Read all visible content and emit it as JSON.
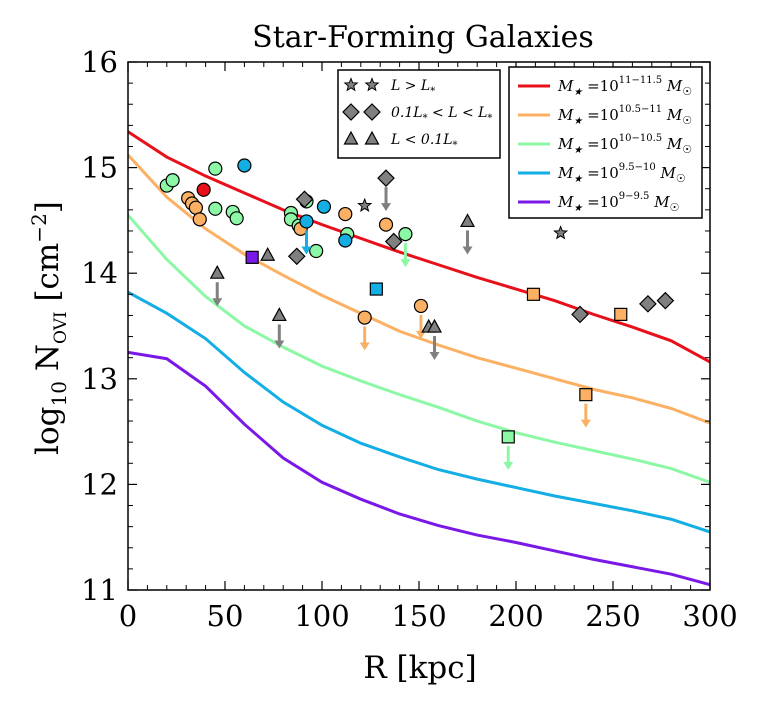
{
  "chart_data": {
    "type": "scatter",
    "title": "Star-Forming Galaxies",
    "xlabel": "R [kpc]",
    "ylabel": "log",
    "ylabel_parts": {
      "base": "log",
      "base_sub": "10",
      "N": "N",
      "N_sub": "OVI",
      "units": "[cm",
      "units_sup": "−2",
      "units_close": "]"
    },
    "xlim": [
      0,
      300
    ],
    "ylim": [
      11,
      16
    ],
    "xticks": [
      "0",
      "50",
      "100",
      "150",
      "200",
      "250",
      "300"
    ],
    "yticks": [
      "11",
      "12",
      "13",
      "14",
      "15",
      "16"
    ],
    "colors": {
      "red": "#e8101a",
      "orange": "#fbb063",
      "green": "#8cf8a6",
      "blue": "#12aee4",
      "purple": "#7a18e8",
      "gray": "#808080"
    },
    "model_lines": [
      {
        "name": "10^{11-11.5}",
        "label": "M",
        "color": "#e8101a",
        "x": [
          0,
          20,
          40,
          60,
          80,
          100,
          120,
          140,
          160,
          180,
          200,
          220,
          240,
          260,
          280,
          300
        ],
        "y": [
          15.34,
          15.1,
          14.92,
          14.76,
          14.6,
          14.46,
          14.33,
          14.2,
          14.08,
          13.96,
          13.85,
          13.74,
          13.61,
          13.49,
          13.36,
          13.16
        ]
      },
      {
        "name": "10^{10.5-11}",
        "label": "M",
        "color": "#fbb063",
        "x": [
          0,
          20,
          40,
          60,
          80,
          100,
          120,
          140,
          160,
          180,
          200,
          220,
          240,
          260,
          280,
          300
        ],
        "y": [
          15.12,
          14.72,
          14.42,
          14.18,
          13.98,
          13.79,
          13.62,
          13.45,
          13.32,
          13.2,
          13.1,
          13.0,
          12.9,
          12.82,
          12.72,
          12.58
        ]
      },
      {
        "name": "10^{10-10.5}",
        "label": "M",
        "color": "#8cf8a6",
        "x": [
          0,
          20,
          40,
          60,
          80,
          100,
          120,
          140,
          160,
          180,
          200,
          220,
          240,
          260,
          280,
          300
        ],
        "y": [
          14.55,
          14.13,
          13.78,
          13.5,
          13.3,
          13.12,
          12.98,
          12.85,
          12.73,
          12.6,
          12.49,
          12.4,
          12.32,
          12.24,
          12.15,
          12.02
        ]
      },
      {
        "name": "10^{9.5-10}",
        "label": "M",
        "color": "#12aee4",
        "x": [
          0,
          20,
          40,
          60,
          80,
          100,
          120,
          140,
          160,
          180,
          200,
          220,
          240,
          260,
          280,
          300
        ],
        "y": [
          13.82,
          13.62,
          13.38,
          13.06,
          12.78,
          12.56,
          12.39,
          12.26,
          12.14,
          12.05,
          11.97,
          11.89,
          11.82,
          11.75,
          11.67,
          11.55
        ]
      },
      {
        "name": "10^{9-9.5}",
        "label": "M",
        "color": "#7a18e8",
        "x": [
          0,
          20,
          40,
          60,
          80,
          100,
          120,
          140,
          160,
          180,
          200,
          220,
          240,
          260,
          280,
          300
        ],
        "y": [
          13.25,
          13.19,
          12.93,
          12.57,
          12.25,
          12.02,
          11.86,
          11.72,
          11.61,
          11.52,
          11.45,
          11.37,
          11.29,
          11.22,
          11.15,
          11.05
        ]
      }
    ],
    "symbol_legend": [
      {
        "marker": "star",
        "text": "L > L",
        "sub": "*"
      },
      {
        "marker": "diamond",
        "text": "0.1L",
        "sub": "*",
        "mid": " < L < L",
        "sub2": "*"
      },
      {
        "marker": "triangle",
        "text": "L < 0.1L",
        "sub": "*"
      }
    ],
    "mass_legend_prefix": "M",
    "mass_legend_star": "★",
    "mass_legend_suffix": "M",
    "mass_legend_sun": "☉",
    "mass_legend_exps": [
      "11−11.5",
      "10.5−11",
      "10−10.5",
      "9.5−10",
      "9−9.5"
    ],
    "points": [
      {
        "m": "circle",
        "c": "green",
        "x": 20,
        "y": 14.83
      },
      {
        "m": "circle",
        "c": "green",
        "x": 23,
        "y": 14.88
      },
      {
        "m": "circle",
        "c": "orange",
        "x": 31,
        "y": 14.71
      },
      {
        "m": "circle",
        "c": "orange",
        "x": 33,
        "y": 14.66
      },
      {
        "m": "circle",
        "c": "orange",
        "x": 35,
        "y": 14.62
      },
      {
        "m": "circle",
        "c": "orange",
        "x": 37,
        "y": 14.51
      },
      {
        "m": "circle",
        "c": "red",
        "x": 39,
        "y": 14.79
      },
      {
        "m": "circle",
        "c": "green",
        "x": 45,
        "y": 14.99
      },
      {
        "m": "circle",
        "c": "green",
        "x": 45,
        "y": 14.61
      },
      {
        "m": "circle",
        "c": "green",
        "x": 54,
        "y": 14.58
      },
      {
        "m": "circle",
        "c": "green",
        "x": 56,
        "y": 14.52
      },
      {
        "m": "circle",
        "c": "blue",
        "x": 60,
        "y": 15.02
      },
      {
        "m": "circle",
        "c": "green",
        "x": 84,
        "y": 14.57
      },
      {
        "m": "circle",
        "c": "green",
        "x": 84,
        "y": 14.51
      },
      {
        "m": "circle",
        "c": "green",
        "x": 88,
        "y": 14.45
      },
      {
        "m": "circle",
        "c": "orange",
        "x": 89,
        "y": 14.42
      },
      {
        "m": "circle",
        "c": "green",
        "x": 92,
        "y": 14.68
      },
      {
        "m": "circle",
        "c": "green",
        "x": 97,
        "y": 14.21
      },
      {
        "m": "circle",
        "c": "blue",
        "x": 101,
        "y": 14.63
      },
      {
        "m": "circle",
        "c": "orange",
        "x": 112,
        "y": 14.56
      },
      {
        "m": "circle",
        "c": "green",
        "x": 113,
        "y": 14.37
      },
      {
        "m": "circle",
        "c": "blue",
        "x": 112,
        "y": 14.31
      },
      {
        "m": "circle",
        "c": "orange",
        "x": 133,
        "y": 14.46
      },
      {
        "m": "circle",
        "c": "green",
        "x": 143,
        "y": 14.37,
        "lim": true
      },
      {
        "m": "circle",
        "c": "blue",
        "x": 92,
        "y": 14.49,
        "lim": true
      },
      {
        "m": "circle",
        "c": "orange",
        "x": 122,
        "y": 13.58,
        "lim": true
      },
      {
        "m": "circle",
        "c": "orange",
        "x": 151,
        "y": 13.69,
        "lim": true
      },
      {
        "m": "square",
        "c": "purple",
        "x": 64,
        "y": 14.15
      },
      {
        "m": "square",
        "c": "blue",
        "x": 128,
        "y": 13.85
      },
      {
        "m": "square",
        "c": "orange",
        "x": 209,
        "y": 13.8
      },
      {
        "m": "square",
        "c": "orange",
        "x": 254,
        "y": 13.61
      },
      {
        "m": "square",
        "c": "orange",
        "x": 236,
        "y": 12.85,
        "lim": true
      },
      {
        "m": "square",
        "c": "green",
        "x": 196,
        "y": 12.45,
        "lim": true
      },
      {
        "m": "diamond",
        "c": "gray",
        "x": 91,
        "y": 14.7
      },
      {
        "m": "diamond",
        "c": "gray",
        "x": 87,
        "y": 14.16
      },
      {
        "m": "diamond",
        "c": "gray",
        "x": 137,
        "y": 14.3
      },
      {
        "m": "diamond",
        "c": "gray",
        "x": 133,
        "y": 14.9,
        "lim": true
      },
      {
        "m": "diamond",
        "c": "gray",
        "x": 233,
        "y": 13.61
      },
      {
        "m": "diamond",
        "c": "gray",
        "x": 268,
        "y": 13.71
      },
      {
        "m": "diamond",
        "c": "gray",
        "x": 277,
        "y": 13.74
      },
      {
        "m": "star",
        "c": "gray",
        "x": 122,
        "y": 14.64
      },
      {
        "m": "star",
        "c": "gray",
        "x": 223,
        "y": 14.38
      },
      {
        "m": "triangle",
        "c": "gray",
        "x": 72,
        "y": 14.17
      },
      {
        "m": "triangle",
        "c": "gray",
        "x": 46,
        "y": 14.0,
        "lim": true
      },
      {
        "m": "triangle",
        "c": "gray",
        "x": 78,
        "y": 13.6,
        "lim": true
      },
      {
        "m": "triangle",
        "c": "gray",
        "x": 155,
        "y": 13.49
      },
      {
        "m": "triangle",
        "c": "gray",
        "x": 158,
        "y": 13.49,
        "lim": true
      },
      {
        "m": "triangle",
        "c": "gray",
        "x": 175,
        "y": 14.49,
        "lim": true
      }
    ]
  }
}
